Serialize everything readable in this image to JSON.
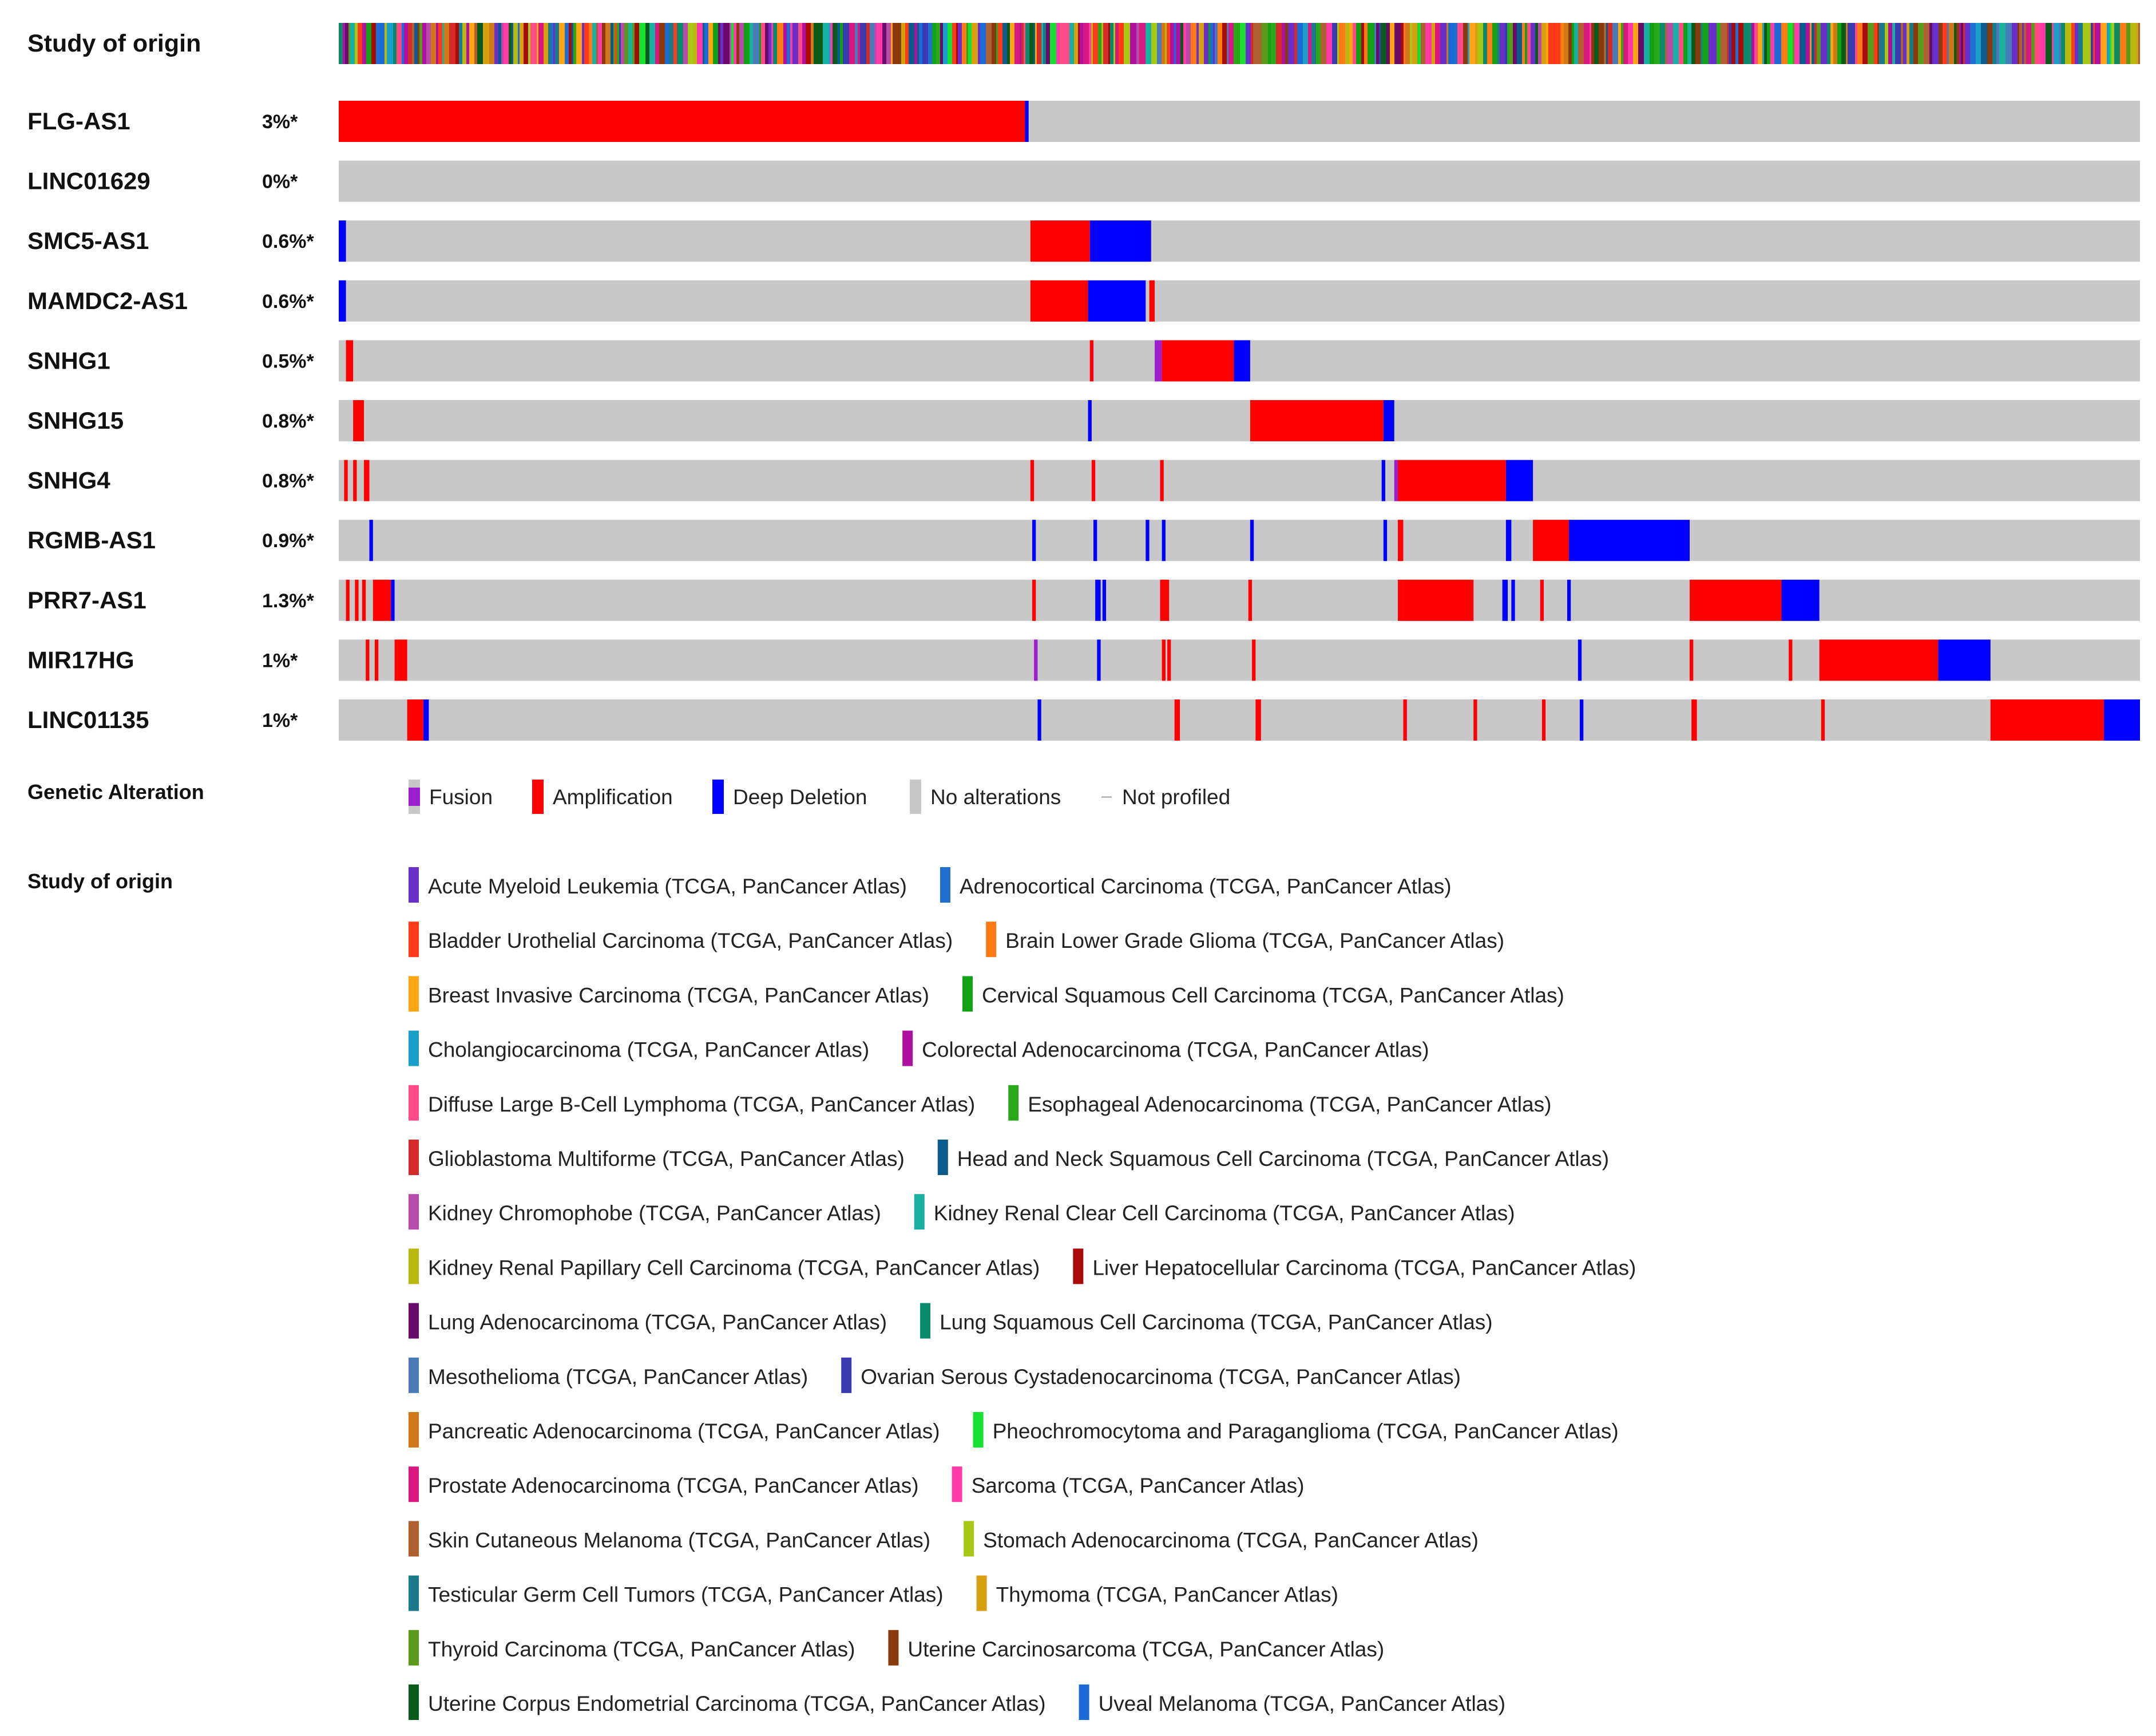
{
  "chart_data": {
    "type": "oncoprint",
    "study_track_label": "Study of origin",
    "genes": [
      {
        "name": "FLG-AS1",
        "percent": "3%*",
        "blocks": [
          {
            "start": 0.0,
            "end": 0.381,
            "type": "amplification"
          },
          {
            "start": 0.381,
            "end": 0.383,
            "type": "deep_deletion"
          }
        ]
      },
      {
        "name": "LINC01629",
        "percent": "0%*",
        "blocks": []
      },
      {
        "name": "SMC5-AS1",
        "percent": "0.6%*",
        "blocks": [
          {
            "start": 0.0,
            "end": 0.004,
            "type": "deep_deletion"
          },
          {
            "start": 0.384,
            "end": 0.417,
            "type": "amplification"
          },
          {
            "start": 0.417,
            "end": 0.451,
            "type": "deep_deletion"
          }
        ]
      },
      {
        "name": "MAMDC2-AS1",
        "percent": "0.6%*",
        "blocks": [
          {
            "start": 0.0,
            "end": 0.004,
            "type": "deep_deletion"
          },
          {
            "start": 0.384,
            "end": 0.416,
            "type": "amplification"
          },
          {
            "start": 0.416,
            "end": 0.448,
            "type": "deep_deletion"
          },
          {
            "start": 0.45,
            "end": 0.453,
            "type": "amplification"
          }
        ]
      },
      {
        "name": "SNHG1",
        "percent": "0.5%*",
        "blocks": [
          {
            "start": 0.004,
            "end": 0.008,
            "type": "amplification"
          },
          {
            "start": 0.417,
            "end": 0.419,
            "type": "amplification"
          },
          {
            "start": 0.453,
            "end": 0.457,
            "type": "fusion"
          },
          {
            "start": 0.457,
            "end": 0.497,
            "type": "amplification"
          },
          {
            "start": 0.497,
            "end": 0.506,
            "type": "deep_deletion"
          }
        ]
      },
      {
        "name": "SNHG15",
        "percent": "0.8%*",
        "blocks": [
          {
            "start": 0.008,
            "end": 0.014,
            "type": "amplification"
          },
          {
            "start": 0.416,
            "end": 0.418,
            "type": "deep_deletion"
          },
          {
            "start": 0.506,
            "end": 0.58,
            "type": "amplification"
          },
          {
            "start": 0.58,
            "end": 0.586,
            "type": "deep_deletion"
          }
        ]
      },
      {
        "name": "SNHG4",
        "percent": "0.8%*",
        "blocks": [
          {
            "start": 0.003,
            "end": 0.005,
            "type": "amplification"
          },
          {
            "start": 0.008,
            "end": 0.01,
            "type": "amplification"
          },
          {
            "start": 0.014,
            "end": 0.017,
            "type": "amplification"
          },
          {
            "start": 0.384,
            "end": 0.386,
            "type": "amplification"
          },
          {
            "start": 0.418,
            "end": 0.42,
            "type": "amplification"
          },
          {
            "start": 0.456,
            "end": 0.458,
            "type": "amplification"
          },
          {
            "start": 0.579,
            "end": 0.581,
            "type": "deep_deletion"
          },
          {
            "start": 0.586,
            "end": 0.588,
            "type": "fusion"
          },
          {
            "start": 0.588,
            "end": 0.648,
            "type": "amplification"
          },
          {
            "start": 0.648,
            "end": 0.663,
            "type": "deep_deletion"
          }
        ]
      },
      {
        "name": "RGMB-AS1",
        "percent": "0.9%*",
        "blocks": [
          {
            "start": 0.017,
            "end": 0.019,
            "type": "deep_deletion"
          },
          {
            "start": 0.385,
            "end": 0.387,
            "type": "deep_deletion"
          },
          {
            "start": 0.419,
            "end": 0.421,
            "type": "deep_deletion"
          },
          {
            "start": 0.448,
            "end": 0.45,
            "type": "deep_deletion"
          },
          {
            "start": 0.457,
            "end": 0.459,
            "type": "deep_deletion"
          },
          {
            "start": 0.506,
            "end": 0.508,
            "type": "deep_deletion"
          },
          {
            "start": 0.58,
            "end": 0.582,
            "type": "deep_deletion"
          },
          {
            "start": 0.588,
            "end": 0.591,
            "type": "amplification"
          },
          {
            "start": 0.648,
            "end": 0.651,
            "type": "deep_deletion"
          },
          {
            "start": 0.663,
            "end": 0.683,
            "type": "amplification"
          },
          {
            "start": 0.683,
            "end": 0.75,
            "type": "deep_deletion"
          }
        ]
      },
      {
        "name": "PRR7-AS1",
        "percent": "1.3%*",
        "blocks": [
          {
            "start": 0.004,
            "end": 0.006,
            "type": "amplification"
          },
          {
            "start": 0.009,
            "end": 0.011,
            "type": "amplification"
          },
          {
            "start": 0.013,
            "end": 0.015,
            "type": "amplification"
          },
          {
            "start": 0.019,
            "end": 0.029,
            "type": "amplification"
          },
          {
            "start": 0.029,
            "end": 0.031,
            "type": "deep_deletion"
          },
          {
            "start": 0.385,
            "end": 0.387,
            "type": "amplification"
          },
          {
            "start": 0.42,
            "end": 0.423,
            "type": "deep_deletion"
          },
          {
            "start": 0.424,
            "end": 0.426,
            "type": "deep_deletion"
          },
          {
            "start": 0.456,
            "end": 0.461,
            "type": "amplification"
          },
          {
            "start": 0.505,
            "end": 0.507,
            "type": "amplification"
          },
          {
            "start": 0.588,
            "end": 0.591,
            "type": "amplification"
          },
          {
            "start": 0.591,
            "end": 0.63,
            "type": "amplification"
          },
          {
            "start": 0.646,
            "end": 0.649,
            "type": "deep_deletion"
          },
          {
            "start": 0.651,
            "end": 0.653,
            "type": "deep_deletion"
          },
          {
            "start": 0.667,
            "end": 0.669,
            "type": "amplification"
          },
          {
            "start": 0.682,
            "end": 0.684,
            "type": "deep_deletion"
          },
          {
            "start": 0.75,
            "end": 0.801,
            "type": "amplification"
          },
          {
            "start": 0.801,
            "end": 0.822,
            "type": "deep_deletion"
          }
        ]
      },
      {
        "name": "MIR17HG",
        "percent": "1%*",
        "blocks": [
          {
            "start": 0.015,
            "end": 0.017,
            "type": "amplification"
          },
          {
            "start": 0.02,
            "end": 0.022,
            "type": "amplification"
          },
          {
            "start": 0.031,
            "end": 0.038,
            "type": "amplification"
          },
          {
            "start": 0.386,
            "end": 0.388,
            "type": "fusion"
          },
          {
            "start": 0.421,
            "end": 0.423,
            "type": "deep_deletion"
          },
          {
            "start": 0.457,
            "end": 0.459,
            "type": "amplification"
          },
          {
            "start": 0.46,
            "end": 0.462,
            "type": "amplification"
          },
          {
            "start": 0.507,
            "end": 0.509,
            "type": "amplification"
          },
          {
            "start": 0.688,
            "end": 0.69,
            "type": "deep_deletion"
          },
          {
            "start": 0.75,
            "end": 0.752,
            "type": "amplification"
          },
          {
            "start": 0.805,
            "end": 0.807,
            "type": "amplification"
          },
          {
            "start": 0.822,
            "end": 0.888,
            "type": "amplification"
          },
          {
            "start": 0.888,
            "end": 0.917,
            "type": "deep_deletion"
          }
        ]
      },
      {
        "name": "LINC01135",
        "percent": "1%*",
        "blocks": [
          {
            "start": 0.038,
            "end": 0.047,
            "type": "amplification"
          },
          {
            "start": 0.047,
            "end": 0.05,
            "type": "deep_deletion"
          },
          {
            "start": 0.388,
            "end": 0.39,
            "type": "deep_deletion"
          },
          {
            "start": 0.464,
            "end": 0.467,
            "type": "amplification"
          },
          {
            "start": 0.509,
            "end": 0.512,
            "type": "amplification"
          },
          {
            "start": 0.591,
            "end": 0.593,
            "type": "amplification"
          },
          {
            "start": 0.63,
            "end": 0.632,
            "type": "amplification"
          },
          {
            "start": 0.668,
            "end": 0.67,
            "type": "amplification"
          },
          {
            "start": 0.689,
            "end": 0.691,
            "type": "deep_deletion"
          },
          {
            "start": 0.751,
            "end": 0.754,
            "type": "amplification"
          },
          {
            "start": 0.823,
            "end": 0.825,
            "type": "amplification"
          },
          {
            "start": 0.917,
            "end": 0.98,
            "type": "amplification"
          },
          {
            "start": 0.98,
            "end": 1.0,
            "type": "deep_deletion"
          }
        ]
      }
    ],
    "alteration_legend": {
      "title": "Genetic Alteration",
      "items": [
        {
          "key": "fusion",
          "label": "Fusion",
          "color": "#9b1fcc"
        },
        {
          "key": "amplification",
          "label": "Amplification",
          "color": "#ff0000"
        },
        {
          "key": "deep_deletion",
          "label": "Deep Deletion",
          "color": "#0000ff"
        },
        {
          "key": "no_alterations",
          "label": "No alterations",
          "color": "#c8c8c8"
        },
        {
          "key": "not_profiled",
          "label": "Not profiled",
          "color": "#bbbbbb"
        }
      ]
    },
    "study_legend": {
      "title": "Study of origin",
      "rows": [
        [
          {
            "label": "Acute Myeloid Leukemia (TCGA, PanCancer Atlas)",
            "color": "#6a2fc9"
          },
          {
            "label": "Adrenocortical Carcinoma (TCGA, PanCancer Atlas)",
            "color": "#1f6fd0"
          }
        ],
        [
          {
            "label": "Bladder Urothelial Carcinoma (TCGA, PanCancer Atlas)",
            "color": "#ff3a18"
          },
          {
            "label": "Brain Lower Grade Glioma (TCGA, PanCancer Atlas)",
            "color": "#ff7a15"
          }
        ],
        [
          {
            "label": "Breast Invasive Carcinoma (TCGA, PanCancer Atlas)",
            "color": "#ffa514"
          },
          {
            "label": "Cervical Squamous Cell Carcinoma (TCGA, PanCancer Atlas)",
            "color": "#12a014"
          }
        ],
        [
          {
            "label": "Cholangiocarcinoma (TCGA, PanCancer Atlas)",
            "color": "#1aa0c8"
          },
          {
            "label": "Colorectal Adenocarcinoma (TCGA, PanCancer Atlas)",
            "color": "#b010a0"
          }
        ],
        [
          {
            "label": "Diffuse Large B-Cell Lymphoma (TCGA, PanCancer Atlas)",
            "color": "#ff4a86"
          },
          {
            "label": "Esophageal Adenocarcinoma (TCGA, PanCancer Atlas)",
            "color": "#2aa81a"
          }
        ],
        [
          {
            "label": "Glioblastoma Multiforme (TCGA, PanCancer Atlas)",
            "color": "#d42a2a"
          },
          {
            "label": "Head and Neck Squamous Cell Carcinoma (TCGA, PanCancer Atlas)",
            "color": "#0a5a8c"
          }
        ],
        [
          {
            "label": "Kidney Chromophobe (TCGA, PanCancer Atlas)",
            "color": "#b84aa8"
          },
          {
            "label": "Kidney Renal Clear Cell Carcinoma (TCGA, PanCancer Atlas)",
            "color": "#18b0a0"
          }
        ],
        [
          {
            "label": "Kidney Renal Papillary Cell Carcinoma (TCGA, PanCancer Atlas)",
            "color": "#b8b810"
          },
          {
            "label": "Liver Hepatocellular Carcinoma (TCGA, PanCancer Atlas)",
            "color": "#a80a0a"
          }
        ],
        [
          {
            "label": "Lung Adenocarcinoma (TCGA, PanCancer Atlas)",
            "color": "#6a0a6a"
          },
          {
            "label": "Lung Squamous Cell Carcinoma (TCGA, PanCancer Atlas)",
            "color": "#0a8a6a"
          }
        ],
        [
          {
            "label": "Mesothelioma (TCGA, PanCancer Atlas)",
            "color": "#4a7ab8"
          },
          {
            "label": "Ovarian Serous Cystadenocarcinoma (TCGA, PanCancer Atlas)",
            "color": "#3a3ab0"
          }
        ],
        [
          {
            "label": "Pancreatic Adenocarcinoma (TCGA, PanCancer Atlas)",
            "color": "#d07818"
          },
          {
            "label": "Pheochromocytoma and Paraganglioma (TCGA, PanCancer Atlas)",
            "color": "#18e030"
          }
        ],
        [
          {
            "label": "Prostate Adenocarcinoma (TCGA, PanCancer Atlas)",
            "color": "#d81880"
          },
          {
            "label": "Sarcoma (TCGA, PanCancer Atlas)",
            "color": "#ff3aa8"
          }
        ],
        [
          {
            "label": "Skin Cutaneous Melanoma (TCGA, PanCancer Atlas)",
            "color": "#b06030"
          },
          {
            "label": "Stomach Adenocarcinoma (TCGA, PanCancer Atlas)",
            "color": "#a8c818"
          }
        ],
        [
          {
            "label": "Testicular Germ Cell Tumors (TCGA, PanCancer Atlas)",
            "color": "#1a7a8a"
          },
          {
            "label": "Thymoma (TCGA, PanCancer Atlas)",
            "color": "#d8a010"
          }
        ],
        [
          {
            "label": "Thyroid Carcinoma (TCGA, PanCancer Atlas)",
            "color": "#5a9a1a"
          },
          {
            "label": "Uterine Carcinosarcoma (TCGA, PanCancer Atlas)",
            "color": "#8a3a0a"
          }
        ],
        [
          {
            "label": "Uterine Corpus Endometrial Carcinoma (TCGA, PanCancer Atlas)",
            "color": "#0a5a1a"
          },
          {
            "label": "Uveal Melanoma (TCGA, PanCancer Atlas)",
            "color": "#1a6ad8"
          }
        ]
      ]
    }
  }
}
